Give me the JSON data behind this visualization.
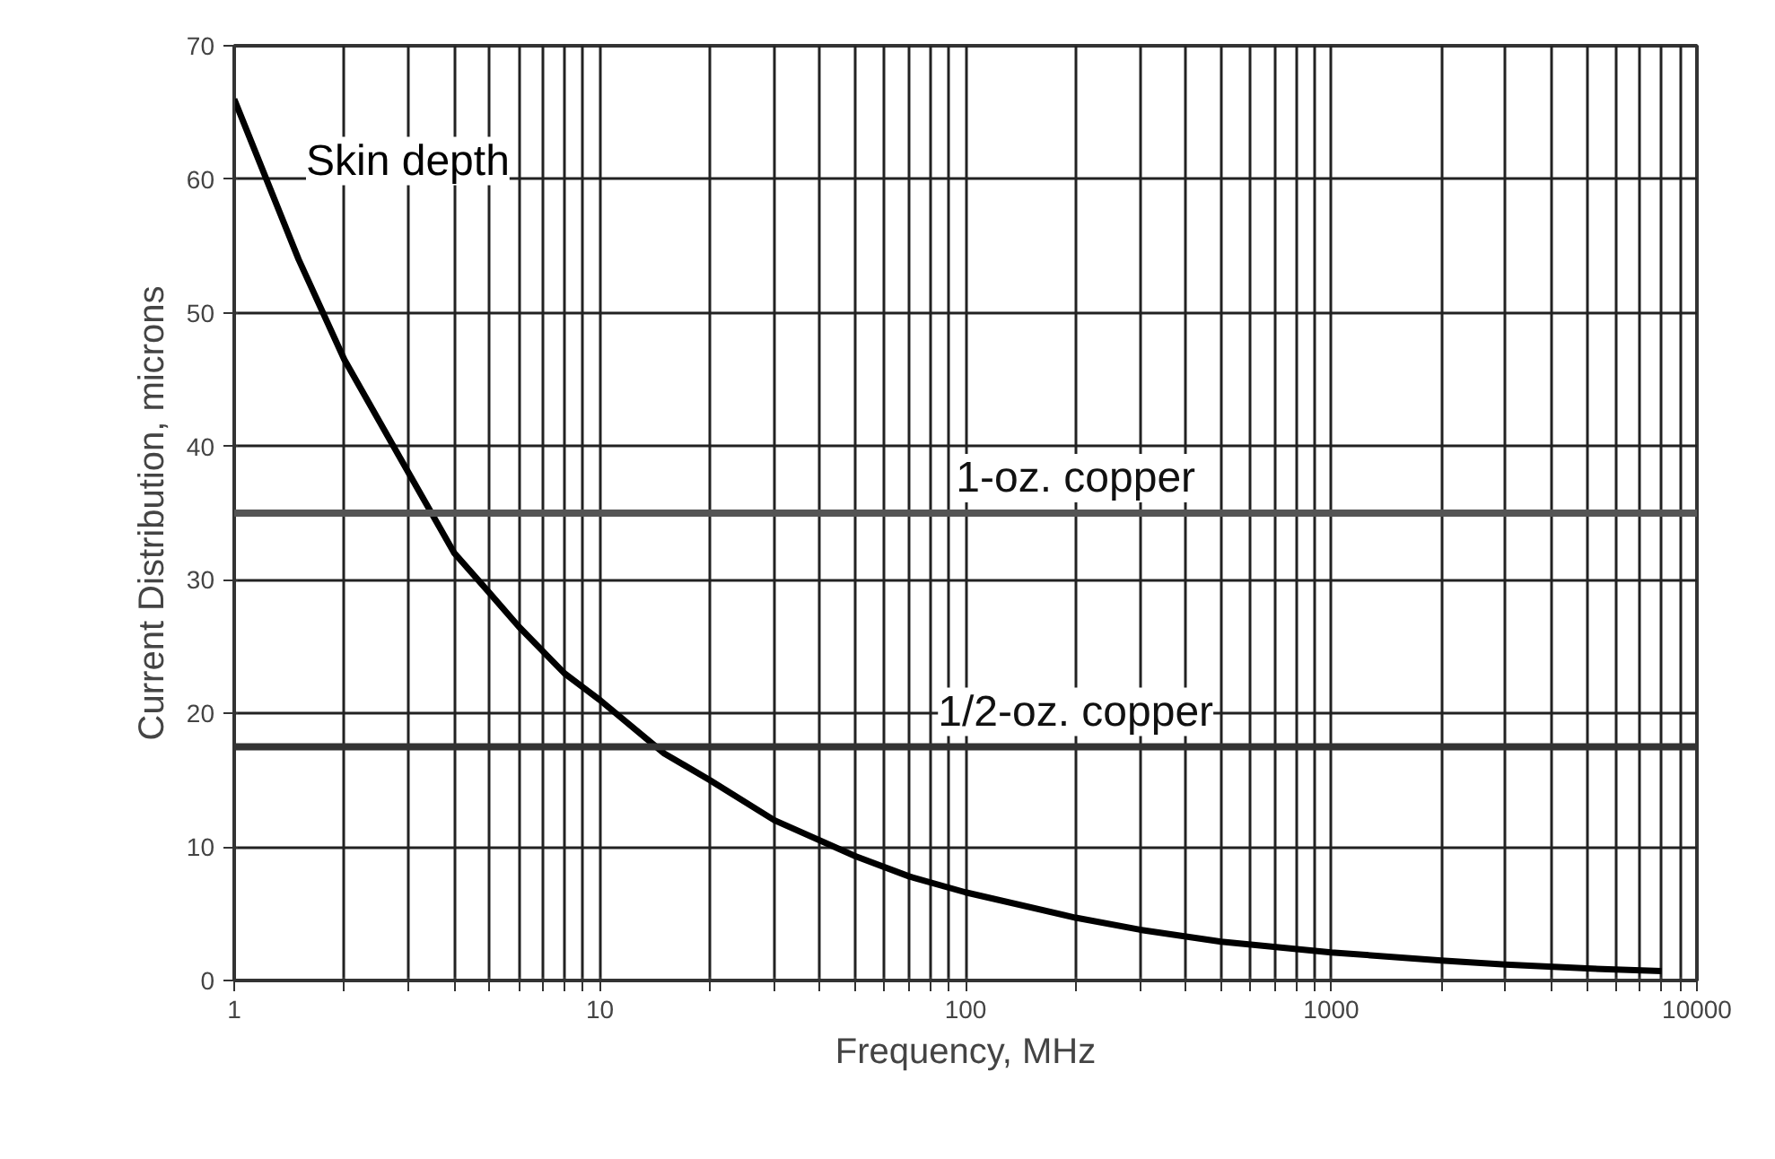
{
  "chart_data": {
    "type": "line",
    "xlabel": "Frequency, MHz",
    "ylabel": "Current Distribution, microns",
    "log": "x",
    "xlim": [
      1,
      10000
    ],
    "ylim": [
      0,
      70
    ],
    "xticks": [
      1,
      {
        "value": 2,
        "label": null
      },
      {
        "value": 3,
        "label": null
      },
      {
        "value": 4,
        "label": null
      },
      {
        "value": 5,
        "label": null
      },
      {
        "value": 6,
        "label": null
      },
      {
        "value": 7,
        "label": null
      },
      {
        "value": 8,
        "label": null
      },
      {
        "value": 9,
        "label": null
      },
      10,
      {
        "value": 20,
        "label": null
      },
      {
        "value": 30,
        "label": null
      },
      {
        "value": 40,
        "label": null
      },
      {
        "value": 50,
        "label": null
      },
      {
        "value": 60,
        "label": null
      },
      {
        "value": 70,
        "label": null
      },
      {
        "value": 80,
        "label": null
      },
      {
        "value": 90,
        "label": null
      },
      100,
      {
        "value": 200,
        "label": null
      },
      {
        "value": 300,
        "label": null
      },
      {
        "value": 400,
        "label": null
      },
      {
        "value": 500,
        "label": null
      },
      {
        "value": 600,
        "label": null
      },
      {
        "value": 700,
        "label": null
      },
      {
        "value": 800,
        "label": null
      },
      {
        "value": 900,
        "label": null
      },
      1000,
      {
        "value": 2000,
        "label": null
      },
      {
        "value": 3000,
        "label": null
      },
      {
        "value": 4000,
        "label": null
      },
      {
        "value": 5000,
        "label": null
      },
      {
        "value": 6000,
        "label": null
      },
      {
        "value": 7000,
        "label": null
      },
      {
        "value": 8000,
        "label": null
      },
      {
        "value": 9000,
        "label": null
      },
      10000
    ],
    "yticks": [
      0,
      10,
      20,
      30,
      40,
      50,
      60,
      70
    ],
    "grid": true,
    "marker": "none",
    "line_style": "solid",
    "series": [
      {
        "name": "Skin depth",
        "color": "#000000",
        "x": [
          1,
          1.5,
          2,
          3,
          4,
          5,
          6,
          8,
          10,
          15,
          20,
          30,
          50,
          70,
          100,
          200,
          300,
          500,
          1000,
          2000,
          3000,
          5000,
          8000
        ],
        "values": [
          66,
          54,
          46.5,
          38,
          32,
          29,
          26.5,
          23,
          21,
          17,
          15,
          12,
          9.3,
          7.8,
          6.6,
          4.7,
          3.8,
          2.9,
          2.1,
          1.5,
          1.2,
          0.9,
          0.7
        ]
      }
    ],
    "ref_lines": [
      {
        "axis": "y",
        "value": 35,
        "label": "1-oz. copper",
        "color": "#555555"
      },
      {
        "axis": "y",
        "value": 17.5,
        "label": "1/2-oz. copper",
        "color": "#333333"
      }
    ]
  }
}
